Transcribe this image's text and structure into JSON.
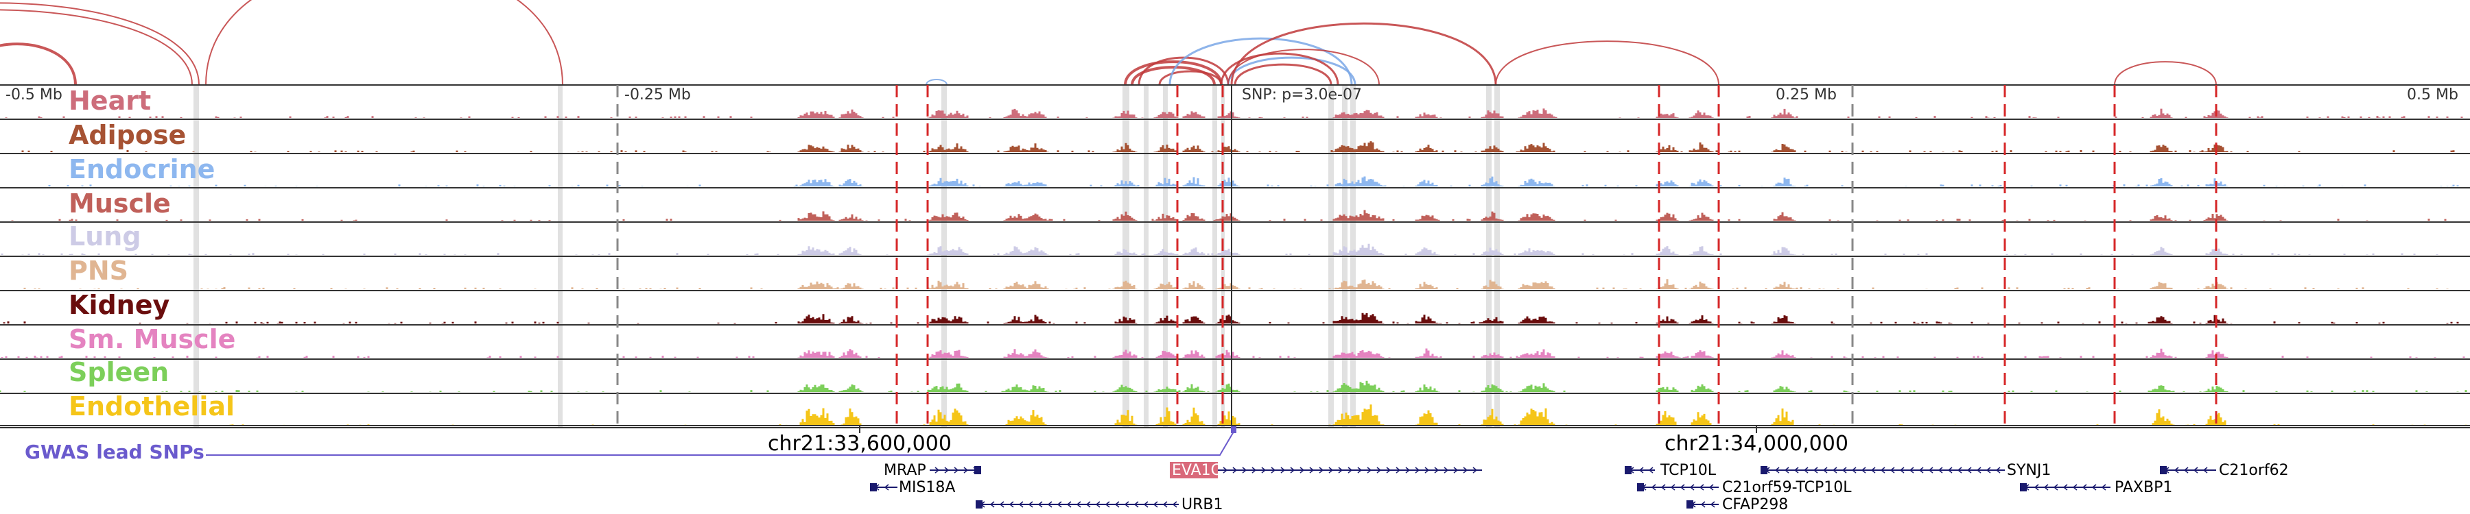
{
  "scale": {
    "left_label": "-0.5 Mb",
    "mid_left_label": "-0.25 Mb",
    "snp_label": "SNP: p=3.0e-07",
    "mid_right_label": "0.25 Mb",
    "right_label": "0.5 Mb"
  },
  "tracks": [
    {
      "name": "Heart",
      "color": "#cd6d7b",
      "seed": 11
    },
    {
      "name": "Adipose",
      "color": "#a65233",
      "seed": 23
    },
    {
      "name": "Endocrine",
      "color": "#8db7ef",
      "seed": 37
    },
    {
      "name": "Muscle",
      "color": "#c0605a",
      "seed": 41
    },
    {
      "name": "Lung",
      "color": "#cdcbe6",
      "seed": 53
    },
    {
      "name": "PNS",
      "color": "#e0b592",
      "seed": 67
    },
    {
      "name": "Kidney",
      "color": "#6a0d0d",
      "seed": 71
    },
    {
      "name": "Sm. Muscle",
      "color": "#e483c0",
      "seed": 89
    },
    {
      "name": "Spleen",
      "color": "#7ccf5a",
      "seed": 97
    },
    {
      "name": "Endothelial",
      "color": "#f5c519",
      "seed": 103
    }
  ],
  "coordinates": {
    "left": "chr21:33,600,000",
    "right": "chr21:34,000,000"
  },
  "gwas": {
    "label": "GWAS lead SNPs",
    "color": "#6a5acd"
  },
  "genes": [
    {
      "name": "MRAP",
      "strand": "+",
      "highlight": false
    },
    {
      "name": "MIS18A",
      "strand": "-",
      "highlight": false
    },
    {
      "name": "URB1",
      "strand": "-",
      "highlight": false
    },
    {
      "name": "EVA1C",
      "strand": "+",
      "highlight": true
    },
    {
      "name": "TCP10L",
      "strand": "-",
      "highlight": false
    },
    {
      "name": "C21orf59-TCP10L",
      "strand": "-",
      "highlight": false
    },
    {
      "name": "CFAP298",
      "strand": "-",
      "highlight": false
    },
    {
      "name": "SYNJ1",
      "strand": "-",
      "highlight": false
    },
    {
      "name": "PAXBP1",
      "strand": "-",
      "highlight": false
    },
    {
      "name": "C21orf62",
      "strand": "-",
      "highlight": false
    }
  ],
  "colors": {
    "arc_red": "#c0393b",
    "arc_blue": "#7aa7e6",
    "red_dashed": "#d62728",
    "grey_band": "#c8c8c8",
    "gene_box": "#1a1a6e",
    "gene_highlight": "#d9697a",
    "track_border": "#333333"
  }
}
